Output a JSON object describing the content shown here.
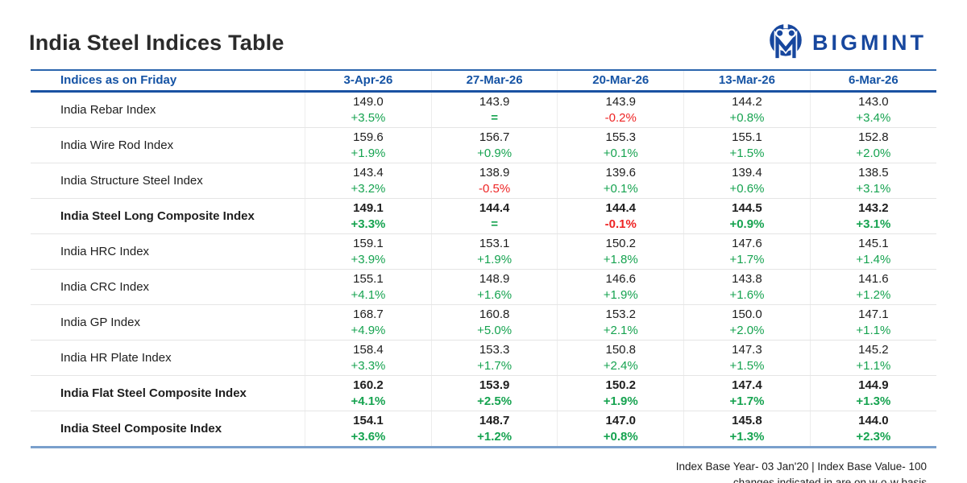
{
  "header": {
    "title": "India Steel Indices Table",
    "logo_text": "BIGMINT"
  },
  "chart_data": {
    "type": "table",
    "title": "India Steel Indices Table",
    "columns": [
      "Indices as on Friday",
      "3-Apr-26",
      "27-Mar-26",
      "20-Mar-26",
      "13-Mar-26",
      "6-Mar-26"
    ],
    "rows": [
      {
        "name": "India Rebar Index",
        "bold": false,
        "cells": [
          {
            "value": "149.0",
            "change": "+3.5%",
            "dir": "up"
          },
          {
            "value": "143.9",
            "change": "=",
            "dir": "eq"
          },
          {
            "value": "143.9",
            "change": "-0.2%",
            "dir": "down"
          },
          {
            "value": "144.2",
            "change": "+0.8%",
            "dir": "up"
          },
          {
            "value": "143.0",
            "change": "+3.4%",
            "dir": "up"
          }
        ]
      },
      {
        "name": "India Wire Rod Index",
        "bold": false,
        "cells": [
          {
            "value": "159.6",
            "change": "+1.9%",
            "dir": "up"
          },
          {
            "value": "156.7",
            "change": "+0.9%",
            "dir": "up"
          },
          {
            "value": "155.3",
            "change": "+0.1%",
            "dir": "up"
          },
          {
            "value": "155.1",
            "change": "+1.5%",
            "dir": "up"
          },
          {
            "value": "152.8",
            "change": "+2.0%",
            "dir": "up"
          }
        ]
      },
      {
        "name": "India Structure Steel Index",
        "bold": false,
        "cells": [
          {
            "value": "143.4",
            "change": "+3.2%",
            "dir": "up"
          },
          {
            "value": "138.9",
            "change": "-0.5%",
            "dir": "down"
          },
          {
            "value": "139.6",
            "change": "+0.1%",
            "dir": "up"
          },
          {
            "value": "139.4",
            "change": "+0.6%",
            "dir": "up"
          },
          {
            "value": "138.5",
            "change": "+3.1%",
            "dir": "up"
          }
        ]
      },
      {
        "name": "India Steel Long Composite Index",
        "bold": true,
        "cells": [
          {
            "value": "149.1",
            "change": "+3.3%",
            "dir": "up"
          },
          {
            "value": "144.4",
            "change": "=",
            "dir": "eq"
          },
          {
            "value": "144.4",
            "change": "-0.1%",
            "dir": "down"
          },
          {
            "value": "144.5",
            "change": "+0.9%",
            "dir": "up"
          },
          {
            "value": "143.2",
            "change": "+3.1%",
            "dir": "up"
          }
        ]
      },
      {
        "name": "India HRC Index",
        "bold": false,
        "cells": [
          {
            "value": "159.1",
            "change": "+3.9%",
            "dir": "up"
          },
          {
            "value": "153.1",
            "change": "+1.9%",
            "dir": "up"
          },
          {
            "value": "150.2",
            "change": "+1.8%",
            "dir": "up"
          },
          {
            "value": "147.6",
            "change": "+1.7%",
            "dir": "up"
          },
          {
            "value": "145.1",
            "change": "+1.4%",
            "dir": "up"
          }
        ]
      },
      {
        "name": "India CRC Index",
        "bold": false,
        "cells": [
          {
            "value": "155.1",
            "change": "+4.1%",
            "dir": "up"
          },
          {
            "value": "148.9",
            "change": "+1.6%",
            "dir": "up"
          },
          {
            "value": "146.6",
            "change": "+1.9%",
            "dir": "up"
          },
          {
            "value": "143.8",
            "change": "+1.6%",
            "dir": "up"
          },
          {
            "value": "141.6",
            "change": "+1.2%",
            "dir": "up"
          }
        ]
      },
      {
        "name": "India GP Index",
        "bold": false,
        "cells": [
          {
            "value": "168.7",
            "change": "+4.9%",
            "dir": "up"
          },
          {
            "value": "160.8",
            "change": "+5.0%",
            "dir": "up"
          },
          {
            "value": "153.2",
            "change": "+2.1%",
            "dir": "up"
          },
          {
            "value": "150.0",
            "change": "+2.0%",
            "dir": "up"
          },
          {
            "value": "147.1",
            "change": "+1.1%",
            "dir": "up"
          }
        ]
      },
      {
        "name": "India HR Plate Index",
        "bold": false,
        "cells": [
          {
            "value": "158.4",
            "change": "+3.3%",
            "dir": "up"
          },
          {
            "value": "153.3",
            "change": "+1.7%",
            "dir": "up"
          },
          {
            "value": "150.8",
            "change": "+2.4%",
            "dir": "up"
          },
          {
            "value": "147.3",
            "change": "+1.5%",
            "dir": "up"
          },
          {
            "value": "145.2",
            "change": "+1.1%",
            "dir": "up"
          }
        ]
      },
      {
        "name": "India Flat Steel Composite Index",
        "bold": true,
        "cells": [
          {
            "value": "160.2",
            "change": "+4.1%",
            "dir": "up"
          },
          {
            "value": "153.9",
            "change": "+2.5%",
            "dir": "up"
          },
          {
            "value": "150.2",
            "change": "+1.9%",
            "dir": "up"
          },
          {
            "value": "147.4",
            "change": "+1.7%",
            "dir": "up"
          },
          {
            "value": "144.9",
            "change": "+1.3%",
            "dir": "up"
          }
        ]
      },
      {
        "name": "India Steel Composite Index",
        "bold": true,
        "cells": [
          {
            "value": "154.1",
            "change": "+3.6%",
            "dir": "up"
          },
          {
            "value": "148.7",
            "change": "+1.2%",
            "dir": "up"
          },
          {
            "value": "147.0",
            "change": "+0.8%",
            "dir": "up"
          },
          {
            "value": "145.8",
            "change": "+1.3%",
            "dir": "up"
          },
          {
            "value": "144.0",
            "change": "+2.3%",
            "dir": "up"
          }
        ]
      }
    ]
  },
  "footer": {
    "line1": "Index Base Year- 03 Jan'20 | Index Base Value- 100",
    "line2": "changes indicated in are on w-o-w basis"
  },
  "colors": {
    "brand_blue": "#17479e",
    "header_blue": "#1553a4",
    "positive_green": "#16a350",
    "negative_red": "#ee2424"
  }
}
